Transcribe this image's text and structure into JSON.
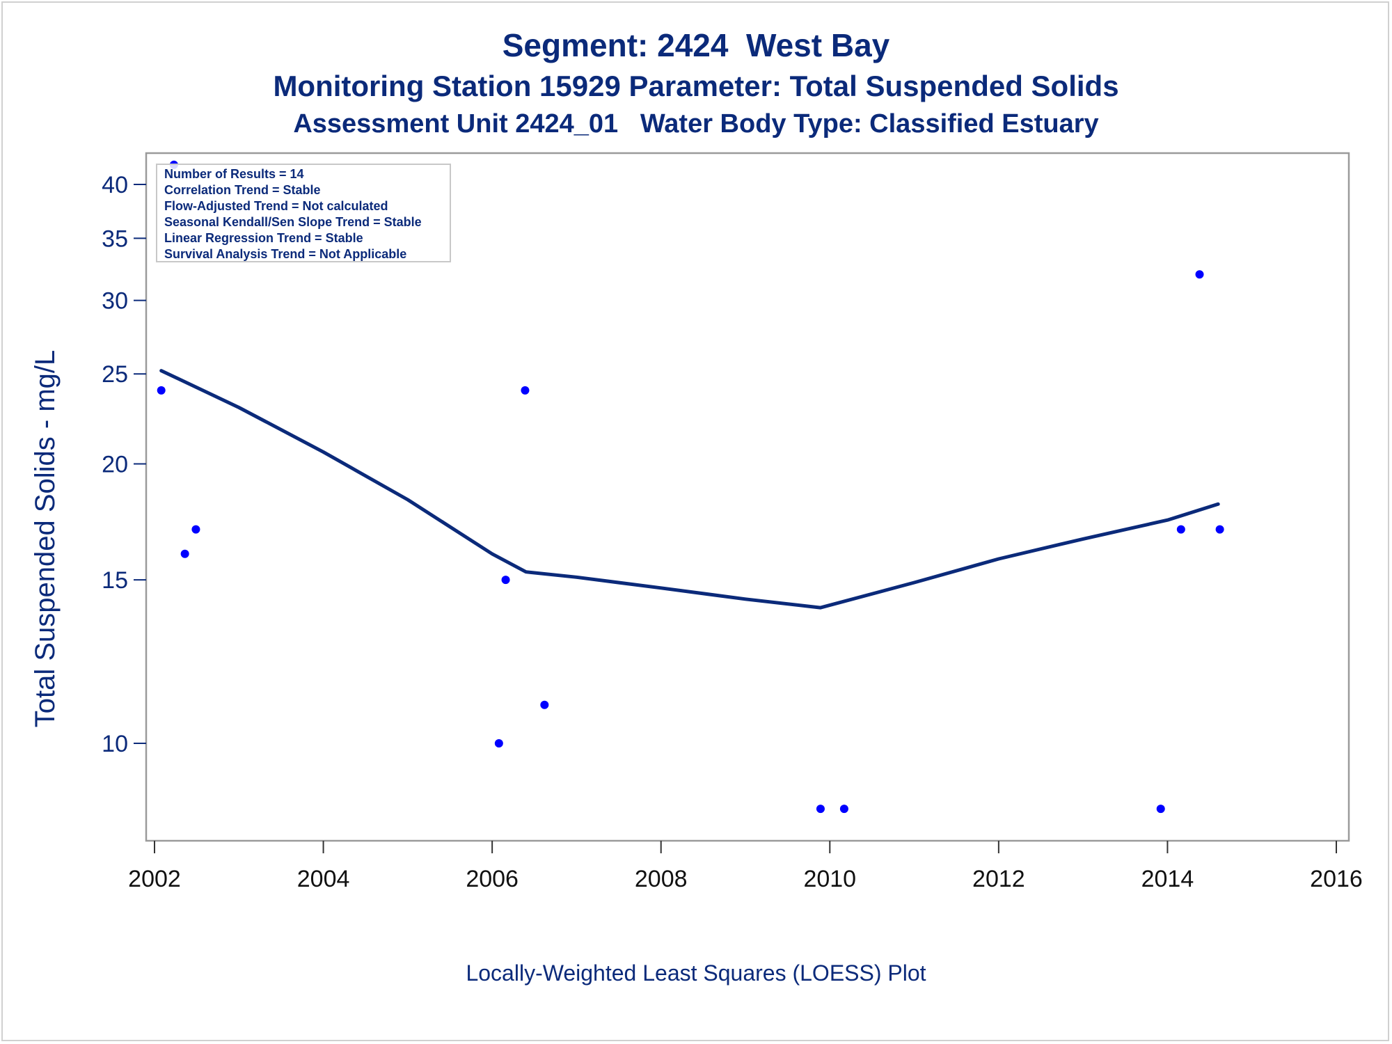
{
  "chart_data": {
    "type": "scatter",
    "title": "Segment: 2424  West Bay",
    "subtitle_1": "Monitoring Station 15929 Parameter: Total Suspended Solids",
    "subtitle_2": "Assessment Unit 2424_01   Water Body Type: Classified Estuary",
    "ylabel": "Total Suspended Solids - mg/L",
    "xlabel": "Locally-Weighted Least Squares (LOESS) Plot",
    "y_scale": "log",
    "xlim": [
      2002,
      2016
    ],
    "ylim": [
      8.4,
      42
    ],
    "x_ticks": [
      "2002",
      "2004",
      "2006",
      "2008",
      "2010",
      "2012",
      "2014",
      "2016"
    ],
    "y_ticks": [
      "10",
      "15",
      "20",
      "25",
      "30",
      "35",
      "40"
    ],
    "grid": false,
    "annotation_box": [
      "Number of Results = 14",
      "Correlation Trend = Stable",
      "Flow-Adjusted Trend = Not calculated",
      "Seasonal Kendall/Sen Slope Trend = Stable",
      "Linear Regression Trend = Stable",
      "Survival Analysis Trend = Not Applicable"
    ],
    "series": [
      {
        "type": "scatter",
        "color": "#0000ff",
        "points": [
          {
            "x": 2002.08,
            "y": 24
          },
          {
            "x": 2002.23,
            "y": 42
          },
          {
            "x": 2002.36,
            "y": 16
          },
          {
            "x": 2002.49,
            "y": 17
          },
          {
            "x": 2006.08,
            "y": 10
          },
          {
            "x": 2006.16,
            "y": 15
          },
          {
            "x": 2006.39,
            "y": 24
          },
          {
            "x": 2006.62,
            "y": 11
          },
          {
            "x": 2009.89,
            "y": 8.5
          },
          {
            "x": 2010.17,
            "y": 8.5
          },
          {
            "x": 2013.92,
            "y": 8.5
          },
          {
            "x": 2014.16,
            "y": 17
          },
          {
            "x": 2014.38,
            "y": 32
          },
          {
            "x": 2014.62,
            "y": 17
          }
        ]
      },
      {
        "type": "line",
        "color": "#0b2a7a",
        "points": [
          {
            "x": 2002.08,
            "y": 25.2
          },
          {
            "x": 2003.0,
            "y": 23.0
          },
          {
            "x": 2004.0,
            "y": 20.6
          },
          {
            "x": 2005.0,
            "y": 18.3
          },
          {
            "x": 2006.0,
            "y": 16.0
          },
          {
            "x": 2006.4,
            "y": 15.3
          },
          {
            "x": 2007.0,
            "y": 15.1
          },
          {
            "x": 2008.0,
            "y": 14.7
          },
          {
            "x": 2009.0,
            "y": 14.3
          },
          {
            "x": 2009.89,
            "y": 14.0
          },
          {
            "x": 2011.0,
            "y": 14.9
          },
          {
            "x": 2012.0,
            "y": 15.8
          },
          {
            "x": 2013.0,
            "y": 16.6
          },
          {
            "x": 2014.0,
            "y": 17.4
          },
          {
            "x": 2014.6,
            "y": 18.1
          }
        ]
      }
    ]
  }
}
